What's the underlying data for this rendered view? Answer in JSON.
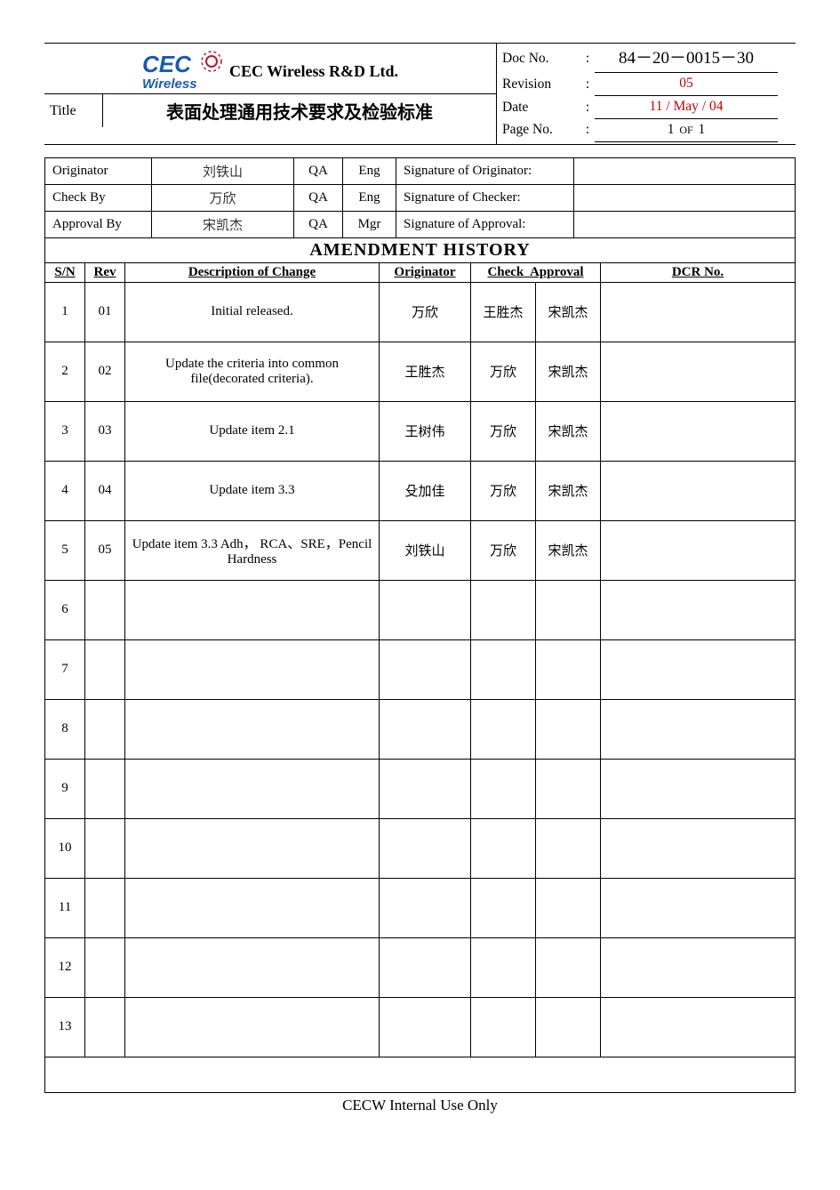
{
  "theme": {
    "text_color": "#000000",
    "accent_color": "#c00000",
    "logo_blue": "#1a5ab4",
    "logo_red": "#c0142c",
    "border_color": "#000000",
    "background": "#ffffff",
    "font_family": "Times New Roman",
    "base_fontsize": 15,
    "title_fontsize": 20
  },
  "header": {
    "company": "CEC Wireless R&D Ltd.",
    "logo_top": "CEC",
    "logo_bottom": "Wireless",
    "title_label": "Title",
    "title_value": "表面处理通用技术要求及检验标准",
    "meta": {
      "doc_no_label": "Doc No.",
      "doc_no": "84－20－0015－30",
      "revision_label": "Revision",
      "revision": "05",
      "date_label": "Date",
      "date": "11 / May / 04",
      "page_no_label": "Page No.",
      "page_current": "1",
      "page_of_label": "OF",
      "page_total": "1"
    }
  },
  "signers": {
    "rows": [
      {
        "role_label": "Originator",
        "name": "刘铁山",
        "dept": "QA",
        "title": "Eng",
        "sig_label": "Signature of Originator:"
      },
      {
        "role_label": "Check By",
        "name": "万欣",
        "dept": "QA",
        "title": "Eng",
        "sig_label": "Signature of Checker:"
      },
      {
        "role_label": "Approval By",
        "name": "宋凯杰",
        "dept": "QA",
        "title": "Mgr",
        "sig_label": "Signature of Approval:"
      }
    ]
  },
  "amendments": {
    "title": "AMENDMENT  HISTORY",
    "columns": {
      "sn": "S/N",
      "rev": "Rev",
      "desc": "Description  of  Change",
      "originator": "Originator",
      "check": "Check",
      "approval": "Approval",
      "dcr": "DCR No."
    },
    "rows": [
      {
        "sn": "1",
        "rev": "01",
        "desc": "Initial released.",
        "originator": "万欣",
        "check": "王胜杰",
        "approval": "宋凯杰",
        "dcr": ""
      },
      {
        "sn": "2",
        "rev": "02",
        "desc": "Update  the  criteria  into  common file(decorated  criteria).",
        "originator": "王胜杰",
        "check": "万欣",
        "approval": "宋凯杰",
        "dcr": ""
      },
      {
        "sn": "3",
        "rev": "03",
        "desc": "Update  item  2.1",
        "originator": "王树伟",
        "check": "万欣",
        "approval": "宋凯杰",
        "dcr": ""
      },
      {
        "sn": "4",
        "rev": "04",
        "desc": "Update  item  3.3",
        "originator": "殳加佳",
        "check": "万欣",
        "approval": "宋凯杰",
        "dcr": ""
      },
      {
        "sn": "5",
        "rev": "05",
        "desc": "Update  item  3.3  Adh，   RCA、SRE，Pencil  Hardness",
        "originator": "刘铁山",
        "check": "万欣",
        "approval": "宋凯杰",
        "dcr": ""
      },
      {
        "sn": "6",
        "rev": "",
        "desc": "",
        "originator": "",
        "check": "",
        "approval": "",
        "dcr": ""
      },
      {
        "sn": "7",
        "rev": "",
        "desc": "",
        "originator": "",
        "check": "",
        "approval": "",
        "dcr": ""
      },
      {
        "sn": "8",
        "rev": "",
        "desc": "",
        "originator": "",
        "check": "",
        "approval": "",
        "dcr": ""
      },
      {
        "sn": "9",
        "rev": "",
        "desc": "",
        "originator": "",
        "check": "",
        "approval": "",
        "dcr": ""
      },
      {
        "sn": "10",
        "rev": "",
        "desc": "",
        "originator": "",
        "check": "",
        "approval": "",
        "dcr": ""
      },
      {
        "sn": "11",
        "rev": "",
        "desc": "",
        "originator": "",
        "check": "",
        "approval": "",
        "dcr": ""
      },
      {
        "sn": "12",
        "rev": "",
        "desc": "",
        "originator": "",
        "check": "",
        "approval": "",
        "dcr": ""
      },
      {
        "sn": "13",
        "rev": "",
        "desc": "",
        "originator": "",
        "check": "",
        "approval": "",
        "dcr": ""
      }
    ]
  },
  "footer": {
    "internal": "CECW  Internal  Use  Only"
  }
}
